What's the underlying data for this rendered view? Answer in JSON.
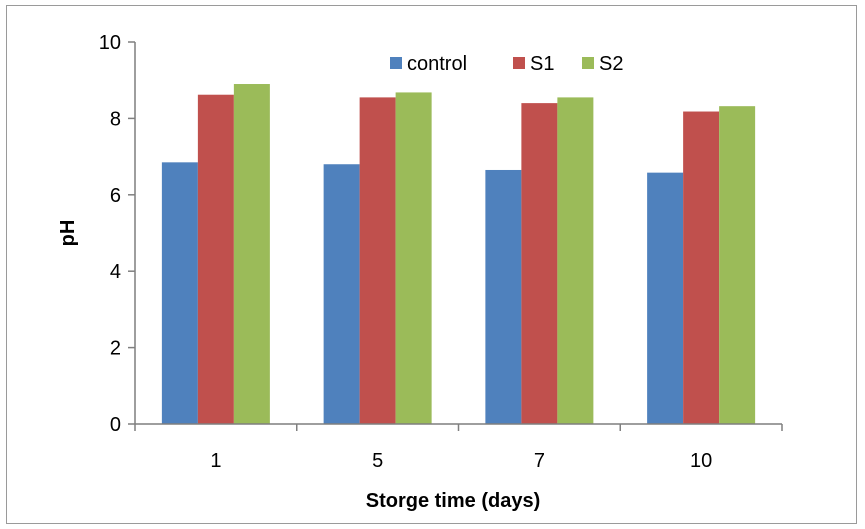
{
  "chart_data": {
    "type": "bar",
    "categories": [
      "1",
      "5",
      "7",
      "10"
    ],
    "series": [
      {
        "name": "control",
        "values": [
          6.85,
          6.8,
          6.65,
          6.58
        ],
        "color": "#4f81bd"
      },
      {
        "name": "S1",
        "values": [
          8.62,
          8.55,
          8.4,
          8.18
        ],
        "color": "#c0504d"
      },
      {
        "name": "S2",
        "values": [
          8.9,
          8.68,
          8.55,
          8.32
        ],
        "color": "#9bbb59"
      }
    ],
    "xlabel": "Storge time (days)",
    "ylabel": "pH",
    "ylim": [
      0,
      10
    ],
    "yticks": [
      "0",
      "2",
      "4",
      "6",
      "8",
      "10"
    ],
    "grid": false,
    "legend_position": "top-right"
  }
}
